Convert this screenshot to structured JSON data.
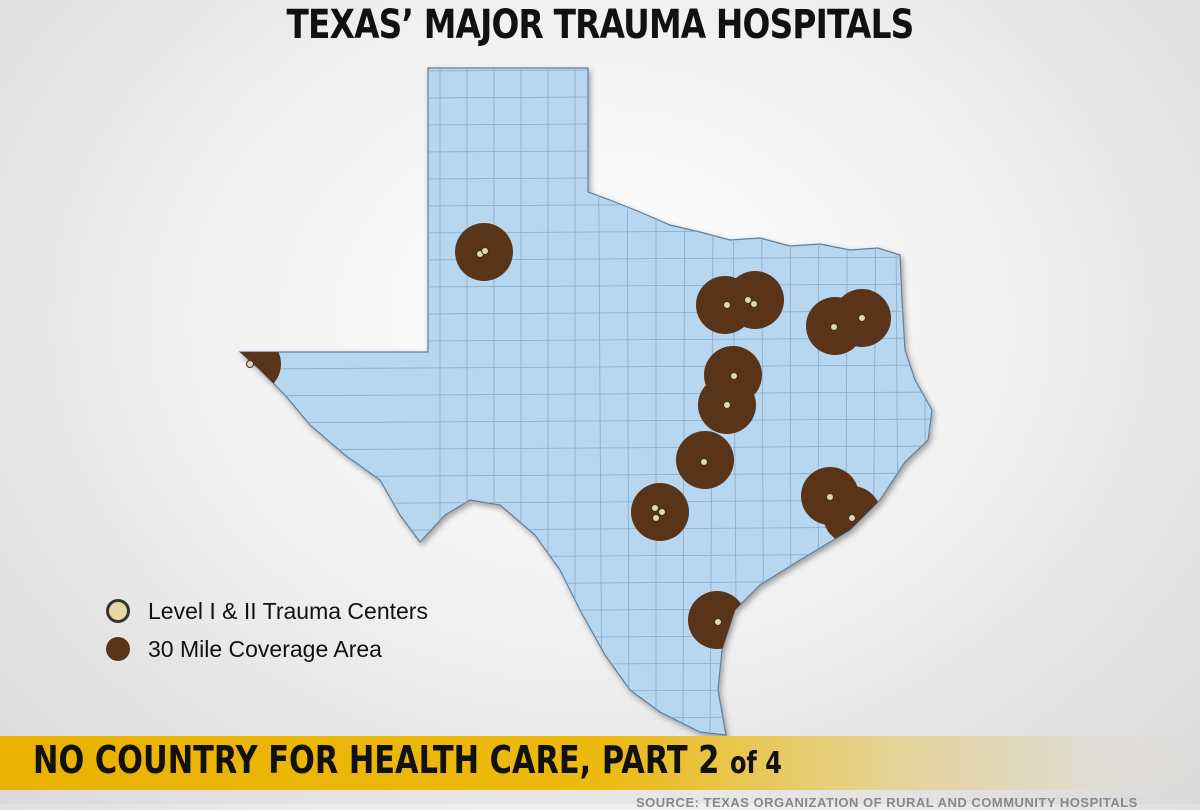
{
  "title": "TEXAS’ MAJOR TRAUMA HOSPITALS",
  "legend": {
    "items": [
      {
        "label": "Level I & II Trauma Centers",
        "color": "#e8d7a2"
      },
      {
        "label": "30 Mile Coverage Area",
        "color": "#5a3418"
      }
    ]
  },
  "banner": {
    "main": "NO COUNTRY FOR HEALTH CARE, PART 2",
    "suffix": "of 4"
  },
  "source": "SOURCE: TEXAS ORGANIZATION OF RURAL AND COMMUNITY HOSPITALS",
  "colors": {
    "state_fill": "#b7d6f0",
    "county_lines": "#8aa9c6",
    "coverage": "#5a3418",
    "center": "#e8d7a2",
    "banner": "#e9b200"
  }
}
